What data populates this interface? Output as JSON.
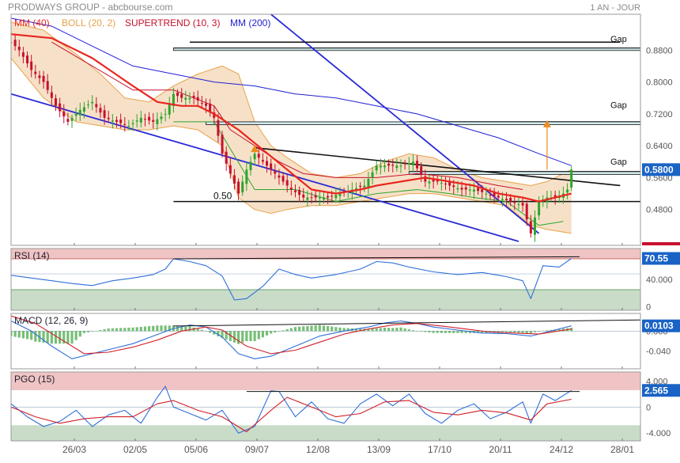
{
  "header": {
    "title": "PRODWAYS GROUP - abcbourse.com",
    "period": "1 AN - JOUR"
  },
  "colors": {
    "mm40": "#e8261f",
    "bollinger": "#e8a24a",
    "supertrend": "#c8102e",
    "mm200": "#1f1fd6",
    "up": "#2ea52e",
    "down": "#c8102e",
    "trend": "#2a2ad6",
    "rsi": "#2f6fd8",
    "zone_high": "#f0c4c4",
    "zone_low": "#c8dcc8",
    "badge": "#1a63c6"
  },
  "x_ticks": [
    "26/03",
    "02/05",
    "05/06",
    "09/07",
    "12/08",
    "13/09",
    "17/10",
    "20/11",
    "24/12",
    "28/01"
  ],
  "chart_data": [
    {
      "type": "line",
      "panel": "price",
      "legend": [
        {
          "name": "MM (40)",
          "color": "#e8261f"
        },
        {
          "name": "BOLL (20, 2)",
          "color": "#e8a24a"
        },
        {
          "name": "SUPERTREND (10, 3)",
          "color": "#c8102e"
        },
        {
          "name": "MM (200)",
          "color": "#1f1fd6"
        }
      ],
      "ylim": [
        0.39,
        0.97
      ],
      "y_ticks": [
        "0.8800",
        "0.8000",
        "0.7200",
        "0.6400",
        "0.5600",
        "0.4800"
      ],
      "last_value": "0.5800",
      "gap_labels": [
        "Gap",
        "Gap",
        "Gap"
      ],
      "level_label": "0.50",
      "price": [
        [
          0,
          0.9
        ],
        [
          2,
          0.88
        ],
        [
          5,
          0.83
        ],
        [
          8,
          0.8
        ],
        [
          11,
          0.74
        ],
        [
          14,
          0.7
        ],
        [
          17,
          0.73
        ],
        [
          20,
          0.75
        ],
        [
          23,
          0.71
        ],
        [
          26,
          0.7
        ],
        [
          29,
          0.69
        ],
        [
          32,
          0.71
        ],
        [
          35,
          0.7
        ],
        [
          38,
          0.72
        ],
        [
          40,
          0.77
        ],
        [
          42,
          0.76
        ],
        [
          45,
          0.76
        ],
        [
          48,
          0.74
        ],
        [
          50,
          0.71
        ],
        [
          52,
          0.62
        ],
        [
          54,
          0.57
        ],
        [
          56,
          0.52
        ],
        [
          58,
          0.58
        ],
        [
          60,
          0.62
        ],
        [
          63,
          0.59
        ],
        [
          66,
          0.56
        ],
        [
          69,
          0.53
        ],
        [
          72,
          0.51
        ],
        [
          75,
          0.51
        ],
        [
          78,
          0.51
        ],
        [
          81,
          0.52
        ],
        [
          84,
          0.53
        ],
        [
          87,
          0.54
        ],
        [
          90,
          0.59
        ],
        [
          93,
          0.59
        ],
        [
          96,
          0.59
        ],
        [
          99,
          0.6
        ],
        [
          102,
          0.55
        ],
        [
          105,
          0.55
        ],
        [
          108,
          0.54
        ],
        [
          111,
          0.53
        ],
        [
          114,
          0.53
        ],
        [
          117,
          0.52
        ],
        [
          120,
          0.51
        ],
        [
          123,
          0.5
        ],
        [
          126,
          0.49
        ],
        [
          128,
          0.42
        ],
        [
          130,
          0.5
        ],
        [
          132,
          0.51
        ],
        [
          134,
          0.51
        ],
        [
          136,
          0.52
        ],
        [
          137,
          0.53
        ],
        [
          138,
          0.58
        ]
      ],
      "mm40": [
        [
          0,
          0.92
        ],
        [
          10,
          0.91
        ],
        [
          20,
          0.86
        ],
        [
          30,
          0.79
        ],
        [
          36,
          0.75
        ],
        [
          42,
          0.74
        ],
        [
          46,
          0.74
        ],
        [
          50,
          0.72
        ],
        [
          56,
          0.68
        ],
        [
          62,
          0.63
        ],
        [
          68,
          0.58
        ],
        [
          74,
          0.53
        ],
        [
          80,
          0.52
        ],
        [
          86,
          0.53
        ],
        [
          90,
          0.54
        ],
        [
          96,
          0.55
        ],
        [
          102,
          0.56
        ],
        [
          108,
          0.55
        ],
        [
          114,
          0.54
        ],
        [
          120,
          0.52
        ],
        [
          126,
          0.51
        ],
        [
          130,
          0.5
        ],
        [
          134,
          0.51
        ],
        [
          138,
          0.52
        ]
      ],
      "mm200": [
        [
          0,
          0.96
        ],
        [
          10,
          0.94
        ],
        [
          20,
          0.89
        ],
        [
          30,
          0.84
        ],
        [
          40,
          0.82
        ],
        [
          50,
          0.8
        ],
        [
          60,
          0.79
        ],
        [
          70,
          0.77
        ],
        [
          80,
          0.76
        ],
        [
          90,
          0.74
        ],
        [
          100,
          0.72
        ],
        [
          110,
          0.69
        ],
        [
          120,
          0.66
        ],
        [
          130,
          0.62
        ],
        [
          138,
          0.59
        ]
      ],
      "boll_upper": [
        [
          0,
          0.95
        ],
        [
          8,
          0.93
        ],
        [
          16,
          0.87
        ],
        [
          22,
          0.82
        ],
        [
          28,
          0.76
        ],
        [
          34,
          0.75
        ],
        [
          40,
          0.79
        ],
        [
          46,
          0.82
        ],
        [
          52,
          0.84
        ],
        [
          56,
          0.82
        ],
        [
          60,
          0.7
        ],
        [
          64,
          0.64
        ],
        [
          68,
          0.61
        ],
        [
          74,
          0.57
        ],
        [
          80,
          0.56
        ],
        [
          86,
          0.57
        ],
        [
          92,
          0.6
        ],
        [
          98,
          0.62
        ],
        [
          104,
          0.61
        ],
        [
          110,
          0.58
        ],
        [
          116,
          0.56
        ],
        [
          122,
          0.55
        ],
        [
          128,
          0.54
        ],
        [
          132,
          0.55
        ],
        [
          138,
          0.58
        ]
      ],
      "boll_lower": [
        [
          0,
          0.86
        ],
        [
          8,
          0.76
        ],
        [
          16,
          0.7
        ],
        [
          22,
          0.69
        ],
        [
          28,
          0.68
        ],
        [
          34,
          0.68
        ],
        [
          40,
          0.69
        ],
        [
          46,
          0.68
        ],
        [
          52,
          0.64
        ],
        [
          56,
          0.51
        ],
        [
          60,
          0.48
        ],
        [
          64,
          0.47
        ],
        [
          68,
          0.48
        ],
        [
          74,
          0.49
        ],
        [
          80,
          0.49
        ],
        [
          86,
          0.5
        ],
        [
          92,
          0.51
        ],
        [
          98,
          0.52
        ],
        [
          104,
          0.52
        ],
        [
          110,
          0.51
        ],
        [
          116,
          0.5
        ],
        [
          122,
          0.49
        ],
        [
          128,
          0.44
        ],
        [
          132,
          0.43
        ],
        [
          138,
          0.42
        ]
      ],
      "supertrend_down": [
        [
          10,
          0.9
        ],
        [
          20,
          0.84
        ],
        [
          30,
          0.78
        ],
        [
          40,
          0.78
        ],
        [
          50,
          0.74
        ],
        [
          54,
          0.68
        ],
        [
          60,
          0.64
        ],
        [
          66,
          0.6
        ],
        [
          72,
          0.57
        ],
        [
          80,
          0.56
        ],
        [
          90,
          0.56
        ],
        [
          100,
          0.57
        ],
        [
          110,
          0.56
        ],
        [
          120,
          0.54
        ],
        [
          126,
          0.53
        ]
      ],
      "supertrend_up": [
        [
          40,
          0.7
        ],
        [
          50,
          0.7
        ],
        [
          60,
          0.53
        ],
        [
          70,
          0.53
        ],
        [
          80,
          0.5
        ],
        [
          90,
          0.52
        ],
        [
          100,
          0.53
        ],
        [
          108,
          0.52
        ],
        [
          114,
          0.51
        ],
        [
          122,
          0.5
        ],
        [
          130,
          0.44
        ],
        [
          136,
          0.45
        ]
      ],
      "trend_lines": [
        [
          [
            0,
            0.77
          ],
          [
            125,
            0.4
          ]
        ],
        [
          [
            64,
            0.97
          ],
          [
            130,
            0.42
          ]
        ],
        [
          [
            60,
            0.635
          ],
          [
            150,
            0.54
          ]
        ],
        [
          [
            44,
            0.9
          ],
          [
            150,
            0.9
          ]
        ]
      ],
      "levels": [
        0.885,
        0.7,
        0.575,
        0.5
      ],
      "target_arrow": [
        [
          132,
          0.58
        ],
        [
          132,
          0.7
        ]
      ]
    },
    {
      "type": "line",
      "panel": "rsi",
      "title": "RSI (14)",
      "ylim": [
        -5,
        85
      ],
      "y_ticks": [
        "40.000",
        "0"
      ],
      "last_value": "70.55",
      "zones": [
        [
          70,
          85
        ],
        [
          -5,
          25
        ]
      ],
      "values": [
        [
          0,
          46
        ],
        [
          5,
          42
        ],
        [
          10,
          38
        ],
        [
          15,
          34
        ],
        [
          20,
          31
        ],
        [
          25,
          38
        ],
        [
          30,
          42
        ],
        [
          35,
          47
        ],
        [
          38,
          55
        ],
        [
          40,
          70
        ],
        [
          44,
          66
        ],
        [
          48,
          60
        ],
        [
          52,
          45
        ],
        [
          55,
          10
        ],
        [
          58,
          12
        ],
        [
          62,
          30
        ],
        [
          66,
          55
        ],
        [
          70,
          47
        ],
        [
          74,
          42
        ],
        [
          80,
          47
        ],
        [
          86,
          55
        ],
        [
          90,
          66
        ],
        [
          94,
          64
        ],
        [
          98,
          58
        ],
        [
          104,
          51
        ],
        [
          110,
          47
        ],
        [
          116,
          50
        ],
        [
          122,
          44
        ],
        [
          126,
          38
        ],
        [
          128,
          12
        ],
        [
          131,
          60
        ],
        [
          135,
          58
        ],
        [
          138,
          70.55
        ]
      ],
      "trend_line": [
        [
          40,
          70
        ],
        [
          140,
          73
        ]
      ]
    },
    {
      "type": "line",
      "panel": "macd",
      "title": "MACD (12, 26, 9)",
      "ylim": [
        -0.075,
        0.035
      ],
      "y_ticks": [
        "0.000",
        "-0.040"
      ],
      "last_value": "0.0103",
      "macd": [
        [
          0,
          0.02
        ],
        [
          5,
          0.0
        ],
        [
          10,
          -0.03
        ],
        [
          15,
          -0.055
        ],
        [
          20,
          -0.045
        ],
        [
          25,
          -0.035
        ],
        [
          30,
          -0.025
        ],
        [
          35,
          -0.01
        ],
        [
          40,
          0.005
        ],
        [
          44,
          0.012
        ],
        [
          48,
          0.008
        ],
        [
          52,
          -0.012
        ],
        [
          56,
          -0.045
        ],
        [
          60,
          -0.055
        ],
        [
          64,
          -0.05
        ],
        [
          70,
          -0.03
        ],
        [
          76,
          -0.01
        ],
        [
          82,
          0.0
        ],
        [
          88,
          0.008
        ],
        [
          92,
          0.016
        ],
        [
          96,
          0.02
        ],
        [
          100,
          0.015
        ],
        [
          104,
          0.008
        ],
        [
          110,
          0.002
        ],
        [
          116,
          -0.004
        ],
        [
          122,
          -0.005
        ],
        [
          128,
          -0.01
        ],
        [
          132,
          -0.002
        ],
        [
          138,
          0.0103
        ]
      ],
      "signal": [
        [
          0,
          0.03
        ],
        [
          6,
          0.015
        ],
        [
          12,
          -0.015
        ],
        [
          18,
          -0.045
        ],
        [
          24,
          -0.042
        ],
        [
          30,
          -0.032
        ],
        [
          36,
          -0.018
        ],
        [
          42,
          0.0
        ],
        [
          48,
          0.008
        ],
        [
          52,
          0.002
        ],
        [
          58,
          -0.03
        ],
        [
          64,
          -0.045
        ],
        [
          70,
          -0.038
        ],
        [
          76,
          -0.022
        ],
        [
          82,
          -0.006
        ],
        [
          88,
          0.004
        ],
        [
          94,
          0.012
        ],
        [
          100,
          0.015
        ],
        [
          106,
          0.01
        ],
        [
          112,
          0.004
        ],
        [
          118,
          -0.002
        ],
        [
          124,
          -0.004
        ],
        [
          130,
          -0.006
        ],
        [
          138,
          0.004
        ]
      ],
      "trend_line": [
        [
          40,
          0.01
        ],
        [
          155,
          0.022
        ]
      ]
    },
    {
      "type": "line",
      "panel": "pgo",
      "title": "PGO (15)",
      "ylim": [
        -5.2,
        5.4
      ],
      "y_ticks": [
        "4.000",
        "0",
        "-4.000"
      ],
      "last_value": "2.565",
      "zones": [
        [
          2.6,
          5.4
        ],
        [
          -5.2,
          -2.8
        ]
      ],
      "pgo": [
        [
          0,
          0.5
        ],
        [
          4,
          -1.5
        ],
        [
          8,
          -3.0
        ],
        [
          12,
          -2.2
        ],
        [
          16,
          -0.5
        ],
        [
          20,
          -3.0
        ],
        [
          24,
          -1.2
        ],
        [
          28,
          -0.5
        ],
        [
          32,
          -2.5
        ],
        [
          36,
          1.5
        ],
        [
          38,
          3.2
        ],
        [
          40,
          0
        ],
        [
          44,
          -1.0
        ],
        [
          48,
          -2.0
        ],
        [
          52,
          -0.5
        ],
        [
          56,
          -4.0
        ],
        [
          60,
          -3.0
        ],
        [
          64,
          2.5
        ],
        [
          66,
          2.4
        ],
        [
          70,
          -1.5
        ],
        [
          74,
          0.8
        ],
        [
          78,
          -1.8
        ],
        [
          82,
          -2.5
        ],
        [
          86,
          0.5
        ],
        [
          90,
          2.0
        ],
        [
          94,
          0.2
        ],
        [
          98,
          2.0
        ],
        [
          102,
          -1.0
        ],
        [
          106,
          -2.5
        ],
        [
          110,
          -0.5
        ],
        [
          114,
          0.5
        ],
        [
          118,
          -1.8
        ],
        [
          122,
          -0.8
        ],
        [
          126,
          0.8
        ],
        [
          128,
          -2.5
        ],
        [
          131,
          2.0
        ],
        [
          134,
          1.0
        ],
        [
          138,
          2.565
        ]
      ],
      "signal": [
        [
          0,
          0
        ],
        [
          6,
          -1.5
        ],
        [
          12,
          -2.5
        ],
        [
          18,
          -1.8
        ],
        [
          24,
          -1.5
        ],
        [
          30,
          -1.5
        ],
        [
          36,
          0.5
        ],
        [
          40,
          1.0
        ],
        [
          46,
          -0.5
        ],
        [
          52,
          -1.5
        ],
        [
          58,
          -3.8
        ],
        [
          64,
          -0.5
        ],
        [
          68,
          1.5
        ],
        [
          74,
          0
        ],
        [
          80,
          -1.5
        ],
        [
          86,
          -1.0
        ],
        [
          92,
          0.8
        ],
        [
          98,
          1.0
        ],
        [
          104,
          -0.8
        ],
        [
          110,
          -1.2
        ],
        [
          116,
          -0.5
        ],
        [
          122,
          -0.9
        ],
        [
          128,
          -2.0
        ],
        [
          132,
          0.5
        ],
        [
          138,
          1.2
        ]
      ],
      "trend_line": [
        [
          58,
          2.4
        ],
        [
          140,
          2.4
        ]
      ]
    }
  ]
}
